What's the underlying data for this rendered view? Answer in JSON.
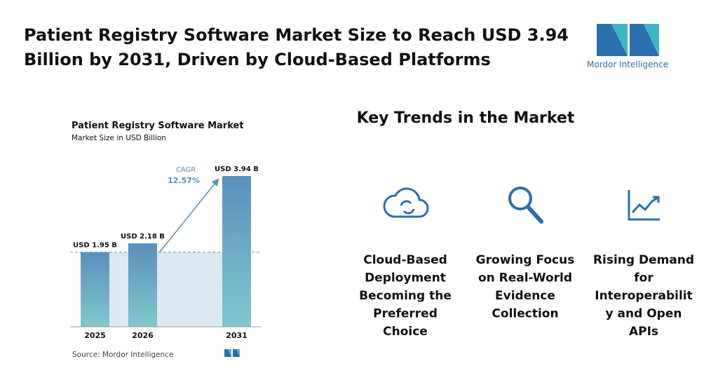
{
  "header": {
    "title_lines": [
      "Patient Registry Software Market Size to Reach USD 3.94",
      "Billion by 2031, Driven by Cloud-Based Platforms"
    ],
    "logo_text": "Mordor Intelligence"
  },
  "chart_data": {
    "type": "bar",
    "title": "Patient Registry Software Market",
    "subtitle": "Market Size in USD Billion",
    "categories": [
      "2025",
      "2026",
      "2031"
    ],
    "values": [
      1.95,
      2.18,
      3.94
    ],
    "value_labels": [
      "USD 1.95 B",
      "USD 2.18 B",
      "USD 3.94 B"
    ],
    "cagr_title": "CAGR",
    "cagr": {
      "value": 12.57,
      "label": "12.57%"
    },
    "source": "Source: Mordor Intelligence",
    "color": [
      "#5a90bd",
      "#80c8cc"
    ]
  },
  "trends": {
    "title": "Key Trends in the Market",
    "items": [
      {
        "lines": [
          "Cloud-Based",
          "Deployment",
          "Becoming the",
          "Preferred",
          "Choice"
        ]
      },
      {
        "lines": [
          "Growing Focus",
          "on Real-World",
          "Evidence",
          "Collection"
        ]
      },
      {
        "lines": [
          "Rising Demand",
          "for",
          "Interoperabilit",
          "y and Open",
          "APIs"
        ]
      }
    ]
  }
}
